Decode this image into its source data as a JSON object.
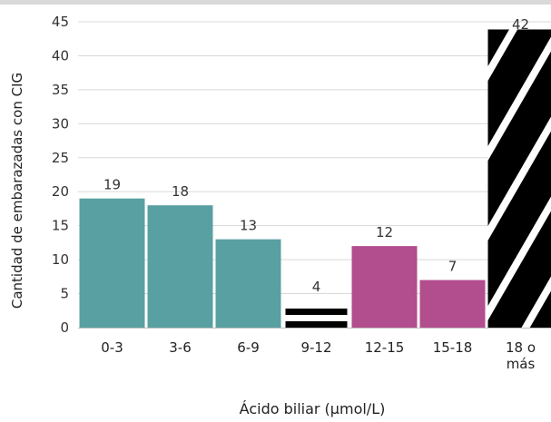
{
  "chart_data": {
    "type": "bar",
    "categories": [
      "0-3",
      "3-6",
      "6-9",
      "9-12",
      "12-15",
      "15-18",
      "18 o más"
    ],
    "category_lines": [
      [
        "0-3"
      ],
      [
        "3-6"
      ],
      [
        "6-9"
      ],
      [
        "9-12"
      ],
      [
        "12-15"
      ],
      [
        "15-18"
      ],
      [
        "18 o",
        "más"
      ]
    ],
    "values": [
      19,
      18,
      13,
      4,
      12,
      7,
      42
    ],
    "data_labels": [
      "19",
      "18",
      "13",
      "4",
      "12",
      "7",
      "42"
    ],
    "bar_styles": [
      "teal",
      "teal",
      "teal",
      "stripes",
      "magenta",
      "magenta",
      "diagonal"
    ],
    "ylabel": "Cantidad de embarazadas con CIG",
    "xlabel": "Ácido biliar (µmol/L)",
    "yticks": [
      0,
      5,
      10,
      15,
      20,
      25,
      30,
      35,
      40,
      45
    ],
    "ylim": [
      0,
      45
    ],
    "grid": true,
    "colors": {
      "teal": "#59a0a2",
      "magenta": "#b24d8e",
      "pattern": "#000000",
      "grid": "#d9d9d9",
      "axis": "#bfbfbf"
    }
  }
}
